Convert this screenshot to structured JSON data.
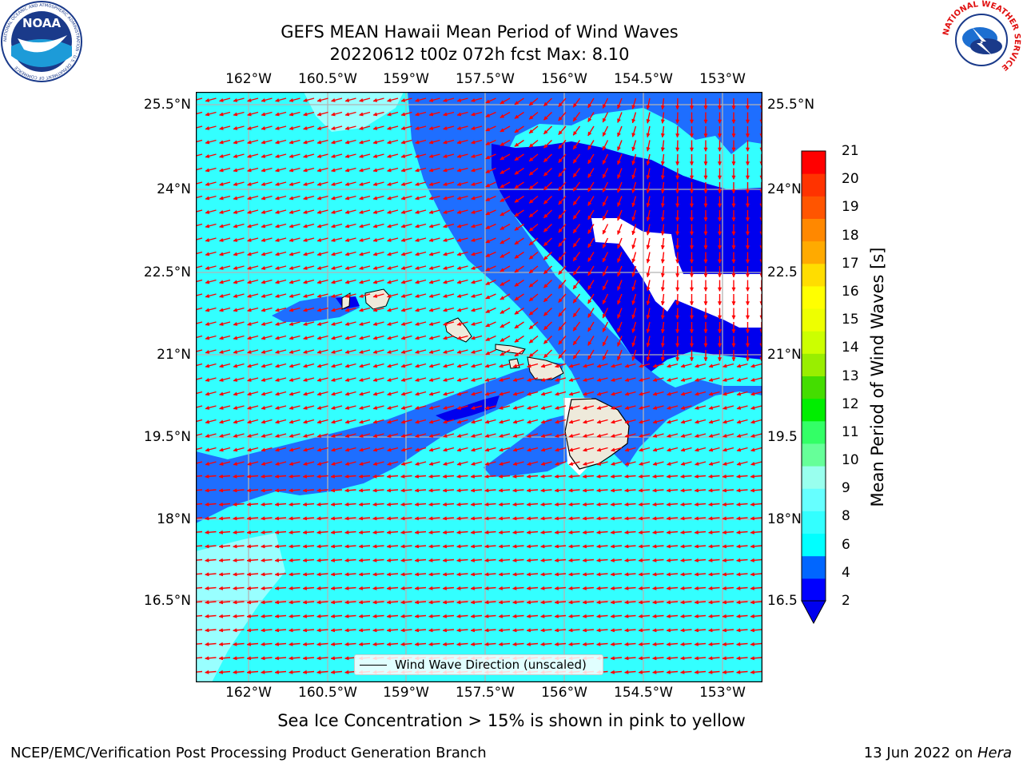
{
  "title_line1": "GEFS MEAN Hawaii Mean Period of Wind Waves",
  "title_line2": "20220612 t00z 072h fcst   Max: 8.10",
  "lon_ticks": [
    "162°W",
    "160.5°W",
    "159°W",
    "157.5°W",
    "156°W",
    "154.5°W",
    "153°W"
  ],
  "lat_ticks": [
    "25.5°N",
    "24°N",
    "22.5°N",
    "21°N",
    "19.5°N",
    "18°N",
    "16.5°N"
  ],
  "lat_ticks_right": [
    "25.5°N",
    "24°N",
    "22.5",
    "21°N",
    "19.5",
    "18°N",
    "16.5"
  ],
  "legend_label": "Wind Wave Direction (unscaled)",
  "colorbar": {
    "label": "Mean Period of Wind Waves [s]",
    "ticks": [
      "21",
      "20",
      "19",
      "18",
      "17",
      "16",
      "15",
      "14",
      "13",
      "12",
      "11",
      "10",
      "9",
      "8",
      "6",
      "4",
      "2"
    ],
    "colors": [
      "#0000ff",
      "#0066ff",
      "#00ffff",
      "#33ffff",
      "#66ffff",
      "#99ffee",
      "#66ff99",
      "#33ff66",
      "#00ee00",
      "#44dd00",
      "#99ee00",
      "#ccff00",
      "#eeff00",
      "#ffff00",
      "#ffdd00",
      "#ffaa00",
      "#ff8800",
      "#ff5500",
      "#ff3300",
      "#ff0000"
    ],
    "extend_color": "#0000ee"
  },
  "map_colors": {
    "cyan": "#33ffff",
    "mid_blue": "#1e6eff",
    "deep_blue": "#0000ee",
    "pale": "#99ffff",
    "land": "#eeeadb",
    "arrow": "#ff0000",
    "grid": "#b3b3b3"
  },
  "note": "Sea Ice Concentration > 15% is shown in pink to yellow",
  "footer_left": "NCEP/EMC/Verification Post Processing Product Generation Branch",
  "footer_right_prefix": "13 Jun 2022 on ",
  "footer_right_machine": "Hera",
  "logos": {
    "left_text": "NOAA",
    "left_ring": "NATIONAL OCEANIC AND ATMOSPHERIC ADMINISTRATION · U.S. DEPARTMENT OF COMMERCE",
    "right_ring": "NATIONAL WEATHER SERVICE"
  }
}
